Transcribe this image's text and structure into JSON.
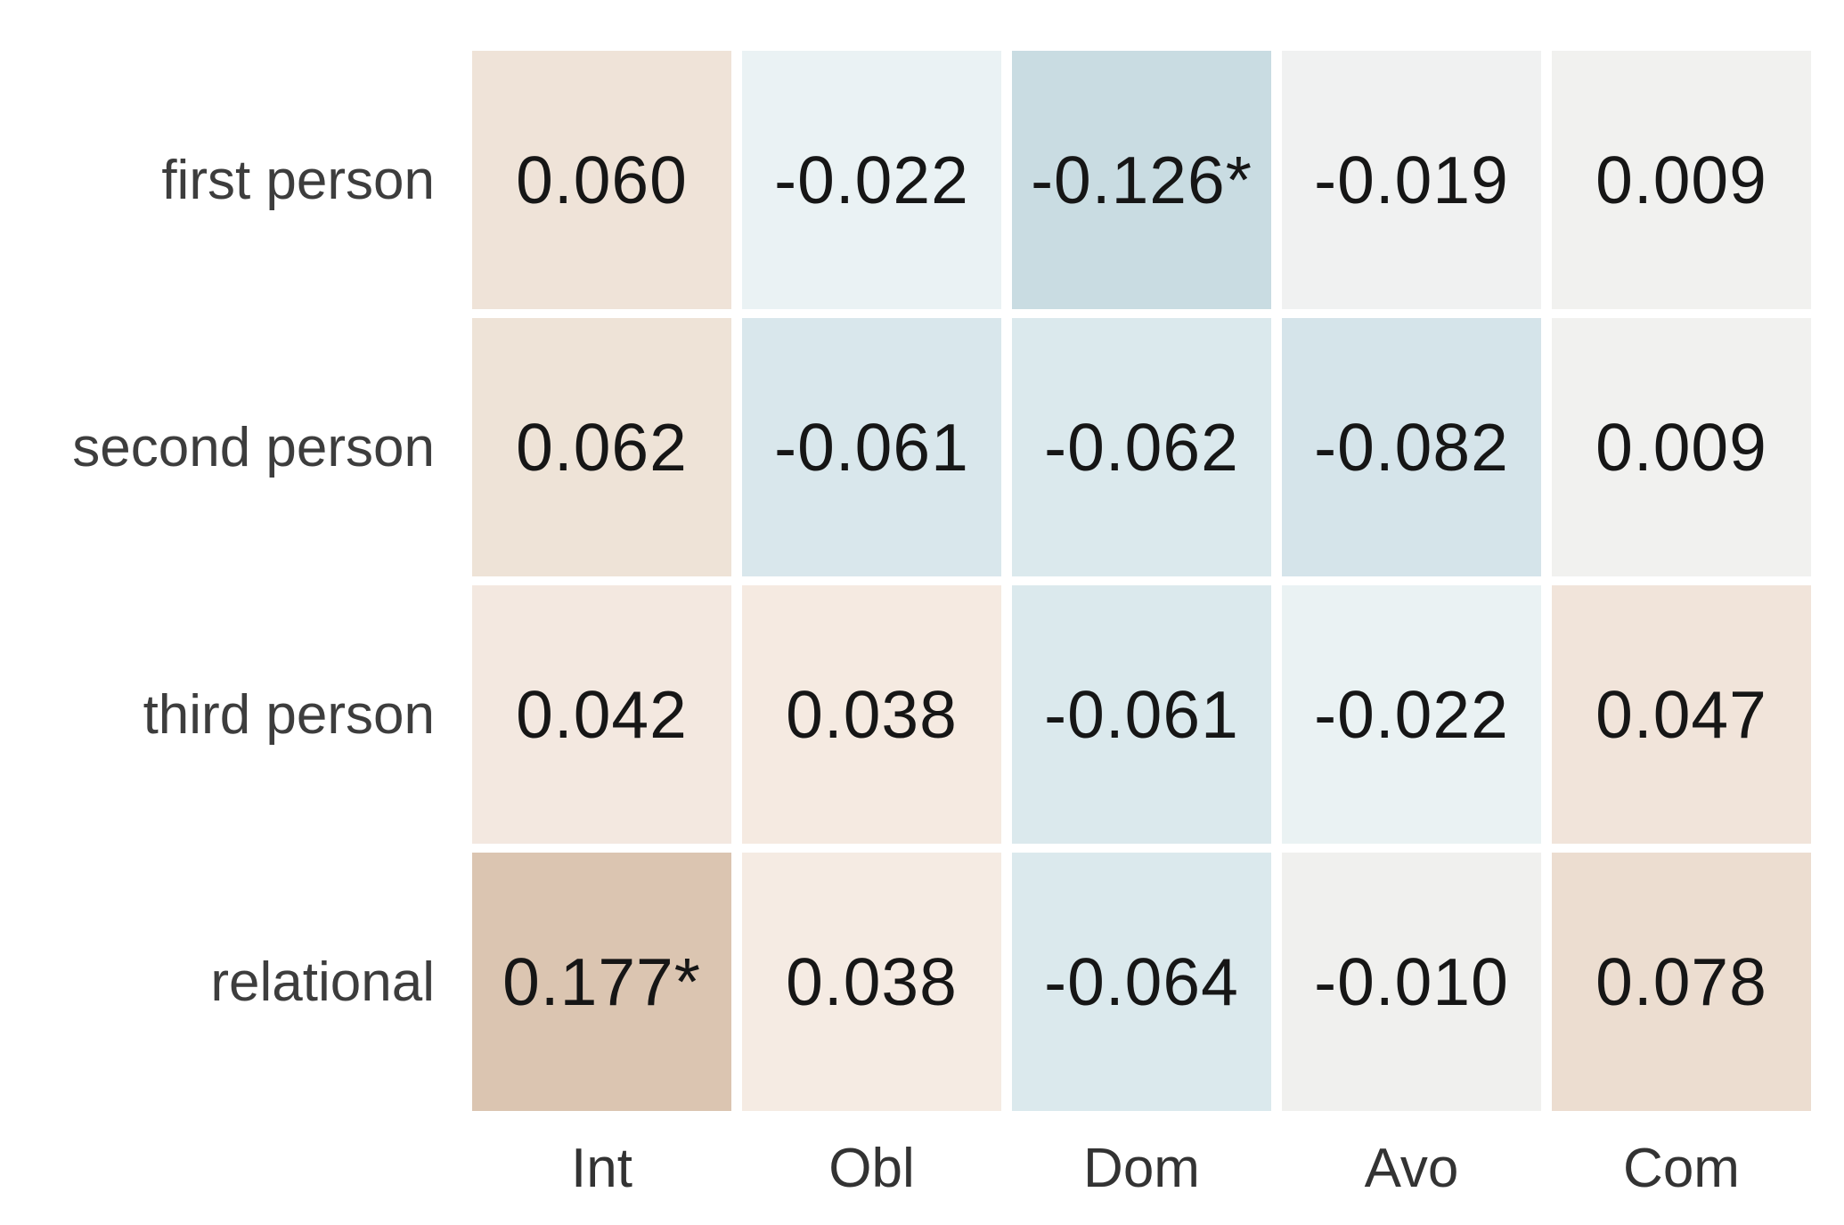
{
  "chart_data": {
    "type": "heatmap",
    "rows": [
      "first person",
      "second person",
      "third person",
      "relational"
    ],
    "columns": [
      "Int",
      "Obl",
      "Dom",
      "Avo",
      "Com"
    ],
    "values": [
      [
        0.06,
        -0.022,
        -0.126,
        -0.019,
        0.009
      ],
      [
        0.062,
        -0.061,
        -0.062,
        -0.082,
        0.009
      ],
      [
        0.042,
        0.038,
        -0.061,
        -0.022,
        0.047
      ],
      [
        0.177,
        0.038,
        -0.064,
        -0.01,
        0.078
      ]
    ],
    "labels": [
      [
        "0.060",
        "-0.022",
        "-0.126*",
        "-0.019",
        "0.009"
      ],
      [
        "0.062",
        "-0.061",
        "-0.062",
        "-0.082",
        "0.009"
      ],
      [
        "0.042",
        "0.038",
        "-0.061",
        "-0.022",
        "0.047"
      ],
      [
        "0.177*",
        "0.038",
        "-0.064",
        "-0.010",
        "0.078"
      ]
    ],
    "cell_colors": [
      [
        "#efe3d8",
        "#eaf2f4",
        "#c9dce2",
        "#f0f1f1",
        "#f1f1ef"
      ],
      [
        "#eee3d7",
        "#d9e7ec",
        "#dbe9ed",
        "#d5e4ea",
        "#f1f1ef"
      ],
      [
        "#f3e8e0",
        "#f5eae1",
        "#dbe9ed",
        "#eaf2f3",
        "#f1e4da"
      ],
      [
        "#dbc5b1",
        "#f5ebe3",
        "#dbe9ed",
        "#f0f0ee",
        "#ecddd0"
      ]
    ],
    "significance_marker": "*",
    "significant_cells": [
      [
        0,
        2
      ],
      [
        3,
        0
      ]
    ],
    "value_range": [
      -0.126,
      0.177
    ],
    "colormap": {
      "negative_end": "#c9dce2",
      "center": "#f1f1f0",
      "positive_end": "#dbc5b1"
    },
    "grid": "off",
    "legend": "off",
    "title": "",
    "xlabel": "",
    "ylabel": ""
  }
}
